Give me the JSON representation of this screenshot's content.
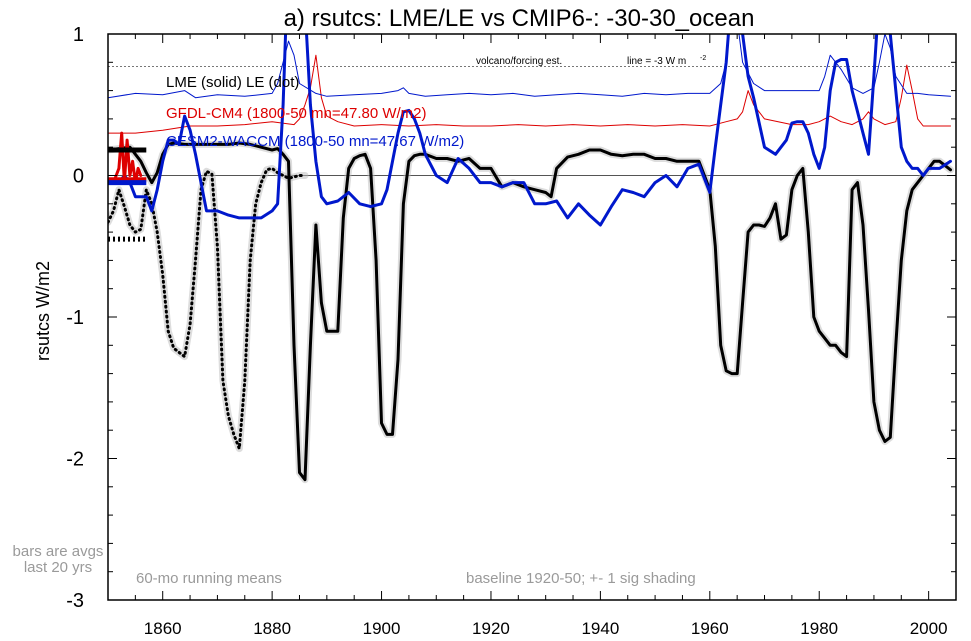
{
  "chart_data": {
    "type": "line",
    "title": "a) rsutcs: LME/LE vs CMIP6-: -30-30_ocean",
    "ylabel": "rsutcs W/m2",
    "xlabel": "",
    "xlim": [
      1850,
      2005
    ],
    "ylim": [
      -3,
      1
    ],
    "xticks": [
      1860,
      1880,
      1900,
      1920,
      1940,
      1960,
      1980,
      2000
    ],
    "yticks": [
      -3,
      -2,
      -1,
      0,
      1
    ],
    "grid": false,
    "legend": [
      {
        "text": "LME (solid)   LE (dot)",
        "color": "#000000"
      },
      {
        "text": "GFDL-CM4 (1800-50 mn=47.80 W/m2)",
        "color": "#dd0000"
      },
      {
        "text": "CESM2-WACCM (1800-50 mn=47.67 W/m2)",
        "color": "#0018cc"
      }
    ],
    "annotations": {
      "volcano_label": "volcano/forcing est.",
      "volcano_line_label": "line = -3 W m",
      "volcano_line_sup": "-2",
      "left_note_1": "bars are avgs",
      "left_note_2": "last 20 yrs",
      "bottom_left_note": "60-mo running means",
      "bottom_right_note": "baseline 1920-50; +- 1 sig shading"
    },
    "colors": {
      "lme": "#000000",
      "gfdl": "#dd0000",
      "cesm": "#0018cc",
      "reference": "#777777",
      "shading": "#bbbbbb"
    },
    "reference_line_y": 0.77,
    "series": [
      {
        "name": "LME (solid)",
        "style": "solid",
        "x": [
          1850,
          1852,
          1854,
          1856,
          1857,
          1858,
          1859,
          1860,
          1861,
          1862,
          1864,
          1866,
          1868,
          1870,
          1872,
          1874,
          1876,
          1878,
          1880,
          1881,
          1882,
          1883,
          1884,
          1885,
          1886,
          1887,
          1888,
          1889,
          1890,
          1891,
          1892,
          1893,
          1894,
          1895,
          1896,
          1897,
          1898,
          1899,
          1900,
          1901,
          1902,
          1903,
          1904,
          1905,
          1906,
          1907,
          1908,
          1910,
          1912,
          1914,
          1916,
          1918,
          1920,
          1922,
          1924,
          1926,
          1928,
          1930,
          1931,
          1932,
          1934,
          1936,
          1938,
          1940,
          1942,
          1944,
          1946,
          1948,
          1950,
          1952,
          1954,
          1956,
          1958,
          1960,
          1961,
          1962,
          1963,
          1964,
          1965,
          1966,
          1967,
          1968,
          1969,
          1970,
          1971,
          1972,
          1973,
          1974,
          1975,
          1976,
          1977,
          1978,
          1979,
          1980,
          1981,
          1982,
          1983,
          1984,
          1985,
          1986,
          1987,
          1988,
          1989,
          1990,
          1991,
          1992,
          1993,
          1994,
          1995,
          1996,
          1997,
          1998,
          1999,
          2000,
          2001,
          2002,
          2003,
          2004
        ],
        "y": [
          0.18,
          0.19,
          0.2,
          0.1,
          0.02,
          -0.05,
          0.02,
          0.15,
          0.22,
          0.23,
          0.22,
          0.22,
          0.22,
          0.22,
          0.22,
          0.23,
          0.22,
          0.2,
          0.18,
          0.19,
          0.15,
          0.1,
          -1.2,
          -2.1,
          -2.15,
          -1.2,
          -0.35,
          -0.9,
          -1.1,
          -1.1,
          -1.1,
          -0.3,
          0.05,
          0.12,
          0.14,
          0.15,
          0.05,
          -0.6,
          -1.75,
          -1.83,
          -1.83,
          -1.3,
          -0.2,
          0.1,
          0.14,
          0.15,
          0.15,
          0.12,
          0.12,
          0.1,
          0.12,
          0.05,
          0.05,
          -0.08,
          -0.05,
          -0.08,
          -0.1,
          -0.12,
          -0.15,
          0.05,
          0.13,
          0.15,
          0.18,
          0.18,
          0.15,
          0.14,
          0.15,
          0.15,
          0.12,
          0.12,
          0.1,
          0.1,
          0.1,
          -0.1,
          -0.5,
          -1.2,
          -1.38,
          -1.4,
          -1.4,
          -0.9,
          -0.4,
          -0.35,
          -0.35,
          -0.36,
          -0.3,
          -0.2,
          -0.45,
          -0.42,
          -0.1,
          0.0,
          0.05,
          -0.4,
          -1.0,
          -1.1,
          -1.15,
          -1.2,
          -1.2,
          -1.25,
          -1.28,
          -0.1,
          -0.05,
          -0.35,
          -0.95,
          -1.6,
          -1.8,
          -1.88,
          -1.85,
          -1.2,
          -0.6,
          -0.25,
          -0.1,
          -0.05,
          0.0,
          0.05,
          0.1,
          0.1,
          0.07,
          0.04
        ]
      },
      {
        "name": "LE (dot)",
        "style": "dot",
        "x": [
          1850,
          1851,
          1852,
          1853,
          1854,
          1855,
          1856,
          1857,
          1858,
          1859,
          1860,
          1861,
          1862,
          1863,
          1864,
          1865,
          1866,
          1867,
          1868,
          1869,
          1870,
          1871,
          1872,
          1873,
          1874,
          1875,
          1876,
          1877,
          1878,
          1879,
          1880,
          1881,
          1882,
          1883,
          1884,
          1885,
          1886
        ],
        "y": [
          -0.33,
          -0.25,
          -0.1,
          -0.22,
          -0.35,
          -0.4,
          -0.38,
          -0.1,
          -0.2,
          -0.4,
          -0.7,
          -1.1,
          -1.22,
          -1.25,
          -1.28,
          -1.05,
          -0.6,
          -0.1,
          0.03,
          0.01,
          -0.5,
          -1.45,
          -1.7,
          -1.83,
          -1.93,
          -1.45,
          -0.6,
          -0.2,
          -0.05,
          0.04,
          0.05,
          0.02,
          0.0,
          -0.02,
          -0.01,
          0.0,
          0.0
        ]
      },
      {
        "name": "CESM2-WACCM",
        "style": "solid-thick",
        "x": [
          1850,
          1852,
          1853,
          1854,
          1855,
          1856,
          1857,
          1858,
          1859,
          1860,
          1861,
          1862,
          1863,
          1864,
          1865,
          1866,
          1868,
          1870,
          1872,
          1874,
          1876,
          1878,
          1880,
          1881,
          1882,
          1883,
          1884,
          1885,
          1886,
          1887,
          1888,
          1889,
          1890,
          1892,
          1894,
          1896,
          1898,
          1900,
          1901,
          1902,
          1903,
          1904,
          1905,
          1906,
          1907,
          1908,
          1910,
          1912,
          1914,
          1916,
          1918,
          1920,
          1922,
          1924,
          1926,
          1928,
          1930,
          1932,
          1934,
          1936,
          1938,
          1940,
          1942,
          1944,
          1946,
          1948,
          1950,
          1952,
          1954,
          1956,
          1958,
          1960,
          1961,
          1962,
          1963,
          1964,
          1965,
          1966,
          1967,
          1968,
          1970,
          1972,
          1974,
          1975,
          1976,
          1977,
          1978,
          1979,
          1980,
          1981,
          1982,
          1983,
          1984,
          1985,
          1986,
          1988,
          1989,
          1990,
          1991,
          1992,
          1993,
          1994,
          1995,
          1996,
          1997,
          1998,
          1999,
          2000,
          2002,
          2004
        ],
        "y": [
          -0.05,
          -0.05,
          0.0,
          -0.05,
          -0.15,
          -0.15,
          -0.15,
          -0.25,
          -0.1,
          0.1,
          0.25,
          0.25,
          0.22,
          0.42,
          0.32,
          0.15,
          -0.25,
          -0.25,
          -0.28,
          -0.3,
          -0.3,
          -0.3,
          -0.25,
          -0.2,
          0.5,
          1.6,
          1.6,
          1.4,
          1.2,
          0.5,
          0.1,
          -0.15,
          -0.2,
          -0.18,
          -0.12,
          -0.2,
          -0.22,
          -0.2,
          -0.1,
          0.1,
          0.3,
          0.45,
          0.46,
          0.4,
          0.3,
          0.15,
          0.0,
          -0.05,
          0.12,
          0.05,
          -0.05,
          -0.05,
          -0.08,
          -0.05,
          -0.05,
          -0.2,
          -0.2,
          -0.18,
          -0.3,
          -0.2,
          -0.28,
          -0.35,
          -0.22,
          -0.1,
          -0.12,
          -0.15,
          -0.05,
          0.0,
          -0.08,
          0.05,
          0.08,
          -0.12,
          0.2,
          0.5,
          0.8,
          1.3,
          1.3,
          1.0,
          0.7,
          0.55,
          0.2,
          0.15,
          0.25,
          0.37,
          0.38,
          0.38,
          0.3,
          0.15,
          0.05,
          0.2,
          0.6,
          0.8,
          0.82,
          0.82,
          0.6,
          0.3,
          0.15,
          0.7,
          1.3,
          1.3,
          1.0,
          0.6,
          0.2,
          0.1,
          0.05,
          0.05,
          0.0,
          0.05,
          0.05,
          0.1
        ]
      },
      {
        "name": "CESM2-WACCM (1800-50 mn=47.67 W/m2)",
        "style": "thin",
        "x": [
          1850,
          1855,
          1860,
          1864,
          1866,
          1870,
          1875,
          1880,
          1881,
          1882,
          1883,
          1884,
          1885,
          1888,
          1890,
          1895,
          1900,
          1903,
          1904,
          1905,
          1908,
          1912,
          1916,
          1920,
          1924,
          1928,
          1932,
          1936,
          1940,
          1944,
          1948,
          1952,
          1956,
          1960,
          1962,
          1963,
          1964,
          1965,
          1966,
          1968,
          1970,
          1975,
          1978,
          1980,
          1981,
          1982,
          1984,
          1986,
          1988,
          1990,
          1991,
          1992,
          1993,
          1994,
          1996,
          1998,
          2000,
          2004
        ],
        "y": [
          0.55,
          0.58,
          0.57,
          0.6,
          0.55,
          0.57,
          0.56,
          0.58,
          0.65,
          0.8,
          0.95,
          0.85,
          0.65,
          0.58,
          0.56,
          0.57,
          0.58,
          0.6,
          0.62,
          0.58,
          0.56,
          0.57,
          0.58,
          0.57,
          0.58,
          0.56,
          0.57,
          0.58,
          0.57,
          0.56,
          0.58,
          0.57,
          0.58,
          0.58,
          0.65,
          0.8,
          1.2,
          1.1,
          0.8,
          0.65,
          0.6,
          0.6,
          0.6,
          0.6,
          0.7,
          0.85,
          0.75,
          0.62,
          0.58,
          0.62,
          0.8,
          1.0,
          0.9,
          0.7,
          0.58,
          0.58,
          0.57,
          0.56
        ]
      },
      {
        "name": "GFDL-CM4 (1800-50 mn=47.80 W/m2)",
        "style": "thin",
        "x": [
          1850,
          1855,
          1860,
          1865,
          1870,
          1875,
          1880,
          1884,
          1885,
          1886,
          1887,
          1888,
          1889,
          1890,
          1892,
          1895,
          1900,
          1905,
          1910,
          1915,
          1920,
          1925,
          1930,
          1935,
          1940,
          1945,
          1950,
          1955,
          1960,
          1963,
          1965,
          1966,
          1967,
          1968,
          1970,
          1975,
          1978,
          1980,
          1982,
          1984,
          1986,
          1988,
          1989,
          1990,
          1992,
          1994,
          1995,
          1996,
          1997,
          1998,
          1999,
          2000,
          2004
        ],
        "y": [
          0.3,
          0.3,
          0.32,
          0.35,
          0.35,
          0.36,
          0.38,
          0.36,
          0.4,
          0.5,
          0.62,
          0.85,
          0.55,
          0.42,
          0.38,
          0.35,
          0.36,
          0.35,
          0.36,
          0.35,
          0.35,
          0.36,
          0.35,
          0.36,
          0.35,
          0.36,
          0.35,
          0.36,
          0.35,
          0.38,
          0.4,
          0.45,
          0.6,
          0.5,
          0.4,
          0.36,
          0.36,
          0.38,
          0.42,
          0.38,
          0.36,
          0.4,
          0.45,
          0.4,
          0.36,
          0.38,
          0.55,
          0.78,
          0.6,
          0.4,
          0.35,
          0.35,
          0.35
        ]
      }
    ],
    "bars": [
      {
        "name": "LME bar",
        "x0": 1850,
        "x1": 1857,
        "y": 0.18,
        "color": "#000000"
      },
      {
        "name": "LE bar",
        "x0": 1850,
        "x1": 1857,
        "y": -0.45,
        "color": "#000000",
        "style": "dot"
      },
      {
        "name": "GFDL bar",
        "x0": 1850,
        "x1": 1857,
        "y": -0.03,
        "color": "#dd0000"
      },
      {
        "name": "CESM bar",
        "x0": 1850,
        "x1": 1857,
        "y": -0.05,
        "color": "#0018cc"
      }
    ],
    "red_spike": {
      "x": [
        1851,
        1852,
        1852.5,
        1853,
        1853.5,
        1854,
        1854.5,
        1855,
        1855.5,
        1856
      ],
      "y": [
        -0.05,
        0.05,
        0.3,
        -0.05,
        0.25,
        0.0,
        0.1,
        -0.05,
        0.05,
        0.0
      ]
    }
  }
}
